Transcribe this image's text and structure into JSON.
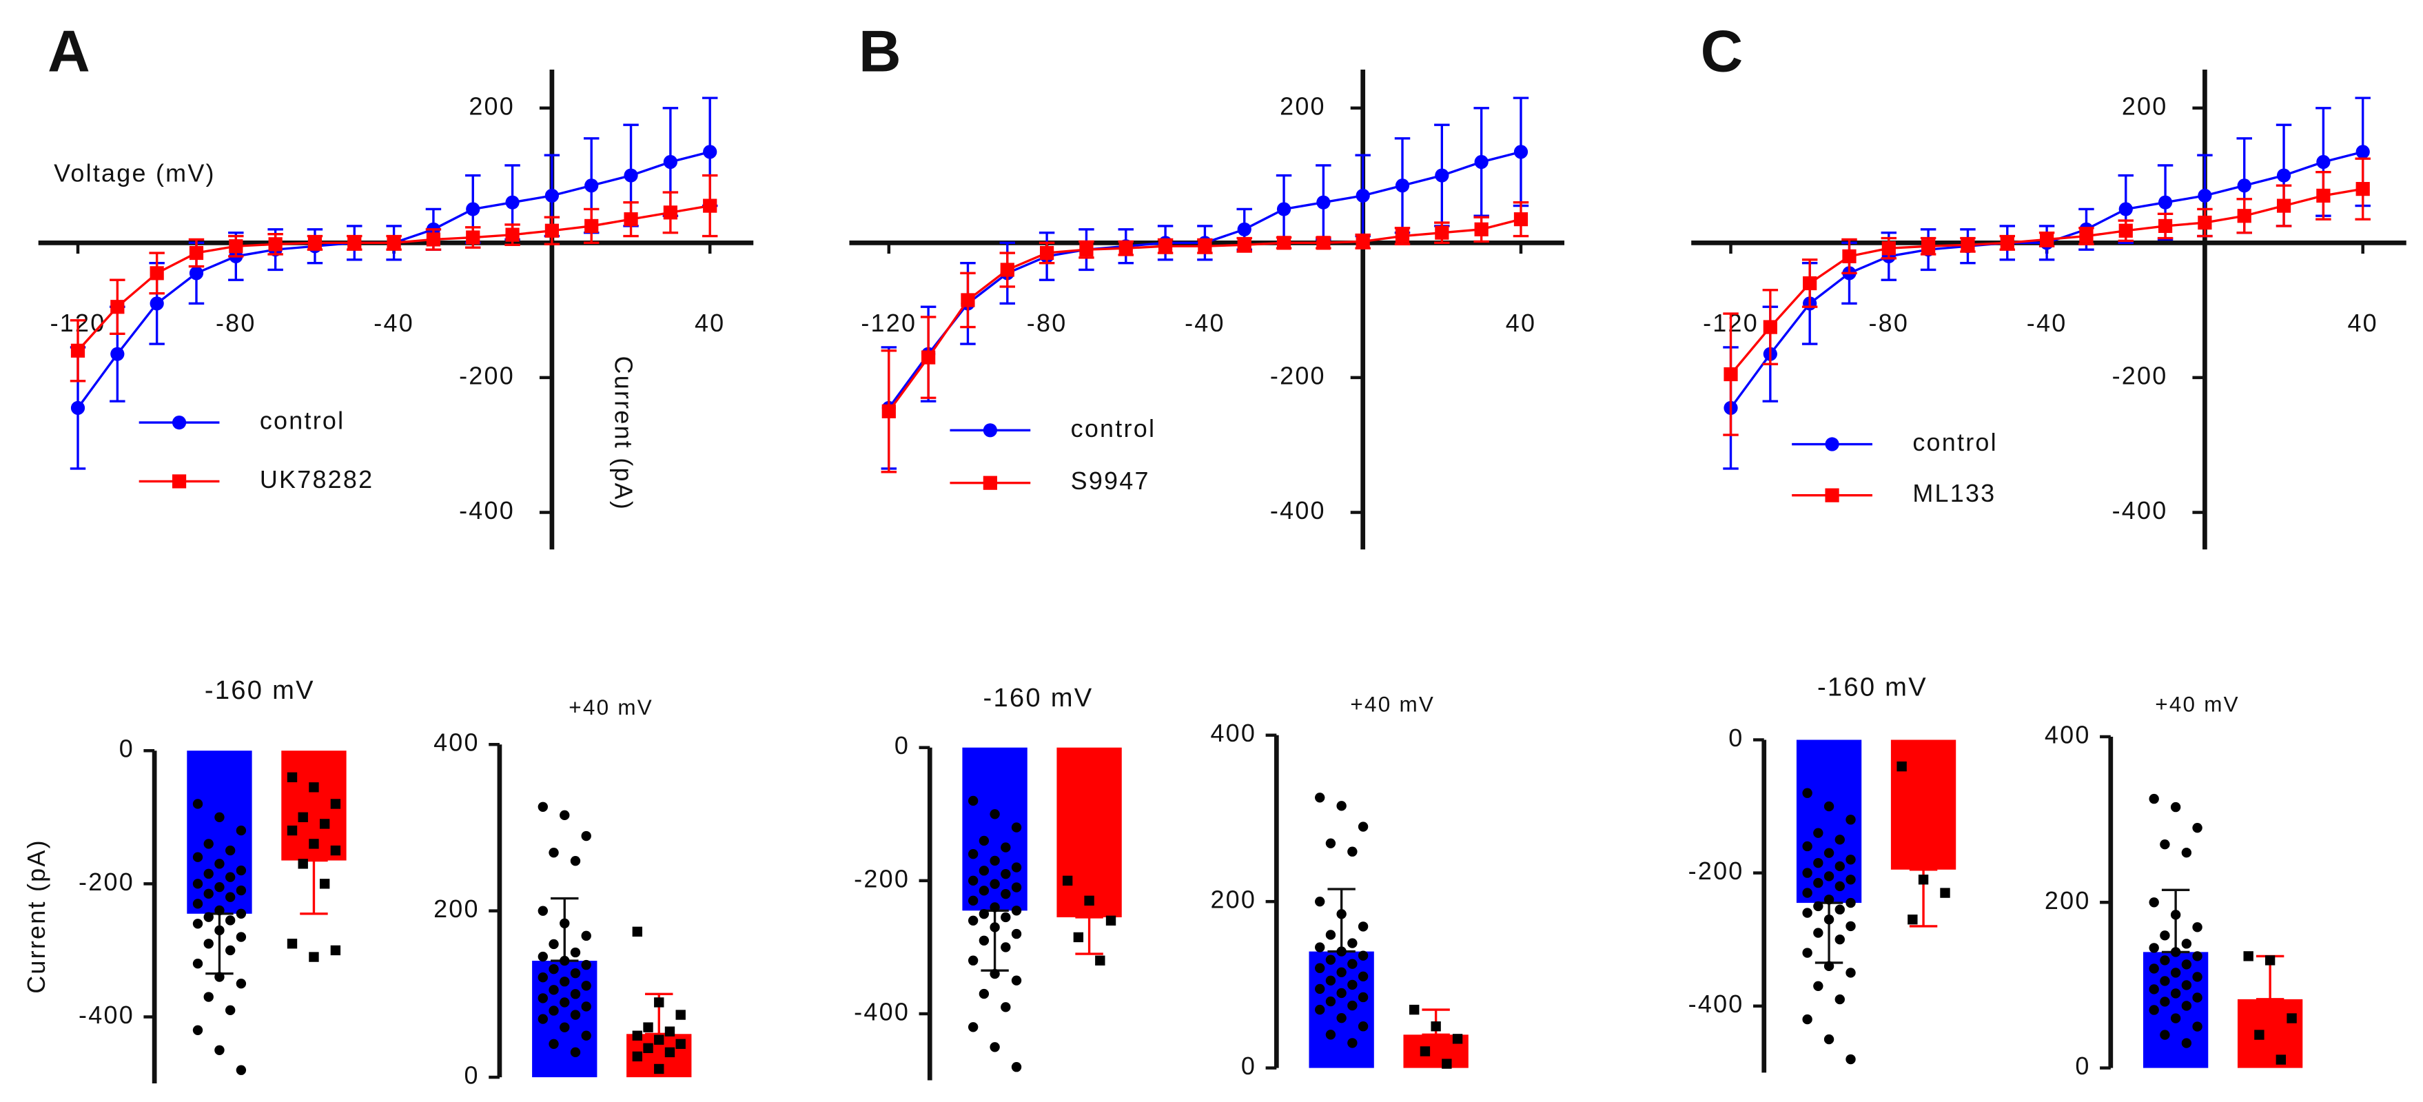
{
  "chart_data": [
    {
      "type": "line",
      "panel": "A",
      "xlabel": "Voltage (mV)",
      "ylabel": "Current (pA)",
      "x": [
        -120,
        -110,
        -100,
        -90,
        -80,
        -70,
        -60,
        -50,
        -40,
        -30,
        -20,
        -10,
        0,
        10,
        20,
        30,
        40
      ],
      "xlim": [
        -130,
        51
      ],
      "ylim": [
        -455,
        257
      ],
      "xticks": [
        -120,
        -80,
        -40,
        40
      ],
      "yticks": [
        -400,
        -200,
        200
      ],
      "series": [
        {
          "name": "control",
          "color": "#0000ff",
          "marker": "circle",
          "values": [
            -245,
            -165,
            -90,
            -45,
            -20,
            -10,
            -5,
            0,
            0,
            20,
            50,
            60,
            70,
            85,
            100,
            120,
            135
          ],
          "errors": [
            90,
            70,
            60,
            45,
            35,
            30,
            25,
            25,
            25,
            30,
            50,
            55,
            60,
            70,
            75,
            80,
            80
          ]
        },
        {
          "name": "UK78282",
          "color": "#ff0000",
          "marker": "square",
          "values": [
            -160,
            -95,
            -45,
            -15,
            -5,
            -2,
            0,
            0,
            0,
            5,
            8,
            12,
            18,
            25,
            35,
            45,
            55
          ],
          "errors": [
            45,
            40,
            30,
            20,
            15,
            15,
            10,
            10,
            10,
            15,
            15,
            15,
            20,
            25,
            25,
            30,
            45
          ]
        }
      ]
    },
    {
      "type": "line",
      "panel": "B",
      "x": [
        -120,
        -110,
        -100,
        -90,
        -80,
        -70,
        -60,
        -50,
        -40,
        -30,
        -20,
        -10,
        0,
        10,
        20,
        30,
        40
      ],
      "xlim": [
        -130,
        51
      ],
      "ylim": [
        -455,
        257
      ],
      "xticks": [
        -120,
        -80,
        -40,
        40
      ],
      "yticks": [
        -400,
        -200,
        200
      ],
      "series": [
        {
          "name": "control",
          "color": "#0000ff",
          "marker": "circle",
          "values": [
            -245,
            -165,
            -90,
            -45,
            -20,
            -10,
            -5,
            0,
            0,
            20,
            50,
            60,
            70,
            85,
            100,
            120,
            135
          ],
          "errors": [
            90,
            70,
            60,
            45,
            35,
            30,
            25,
            25,
            25,
            30,
            50,
            55,
            60,
            70,
            75,
            80,
            80
          ]
        },
        {
          "name": "S9947",
          "color": "#ff0000",
          "marker": "square",
          "values": [
            -250,
            -170,
            -85,
            -40,
            -15,
            -10,
            -8,
            -5,
            -5,
            -3,
            0,
            0,
            2,
            10,
            15,
            20,
            35
          ],
          "errors": [
            90,
            60,
            40,
            25,
            15,
            12,
            10,
            10,
            10,
            10,
            8,
            8,
            10,
            12,
            15,
            18,
            25
          ]
        }
      ]
    },
    {
      "type": "line",
      "panel": "C",
      "x": [
        -120,
        -110,
        -100,
        -90,
        -80,
        -70,
        -60,
        -50,
        -40,
        -30,
        -20,
        -10,
        0,
        10,
        20,
        30,
        40
      ],
      "xlim": [
        -130,
        51
      ],
      "ylim": [
        -455,
        257
      ],
      "xticks": [
        -120,
        -80,
        -40,
        40
      ],
      "yticks": [
        -400,
        -200,
        200
      ],
      "series": [
        {
          "name": "control",
          "color": "#0000ff",
          "marker": "circle",
          "values": [
            -245,
            -165,
            -90,
            -45,
            -20,
            -10,
            -5,
            0,
            0,
            20,
            50,
            60,
            70,
            85,
            100,
            120,
            135
          ],
          "errors": [
            90,
            70,
            60,
            45,
            35,
            30,
            25,
            25,
            25,
            30,
            50,
            55,
            60,
            70,
            75,
            80,
            80
          ]
        },
        {
          "name": "ML133",
          "color": "#ff0000",
          "marker": "square",
          "values": [
            -195,
            -125,
            -60,
            -20,
            -8,
            -5,
            -3,
            0,
            5,
            10,
            18,
            25,
            30,
            40,
            55,
            70,
            80
          ],
          "errors": [
            90,
            55,
            35,
            25,
            15,
            12,
            10,
            10,
            10,
            12,
            15,
            18,
            20,
            25,
            30,
            35,
            45
          ]
        }
      ]
    },
    {
      "type": "bar",
      "title": "-160 mV",
      "ylabel": "Current (pA)",
      "ylim": [
        -500,
        0
      ],
      "yticks": [
        -400,
        -200,
        0
      ],
      "colors": [
        "#0000ff",
        "#ff0000"
      ],
      "values": [
        -245,
        -165
      ],
      "errors": [
        90,
        80
      ],
      "points": [
        [
          -80,
          -100,
          -120,
          -140,
          -150,
          -160,
          -170,
          -180,
          -185,
          -190,
          -200,
          -205,
          -210,
          -215,
          -220,
          -230,
          -240,
          -245,
          -250,
          -255,
          -260,
          -270,
          -280,
          -290,
          -300,
          -320,
          -340,
          -350,
          -370,
          -390,
          -420,
          -450,
          -480
        ],
        [
          -40,
          -55,
          -80,
          -100,
          -110,
          -120,
          -140,
          -150,
          -170,
          -200,
          -290,
          -310,
          -300
        ]
      ]
    },
    {
      "type": "bar",
      "title": "+40 mV",
      "ylim": [
        0,
        400
      ],
      "yticks": [
        0,
        200,
        400
      ],
      "colors": [
        "#0000ff",
        "#ff0000"
      ],
      "values": [
        140,
        52
      ],
      "errors": [
        75,
        48
      ],
      "points": [
        [
          325,
          315,
          290,
          270,
          260,
          200,
          185,
          170,
          160,
          150,
          145,
          140,
          135,
          130,
          125,
          120,
          115,
          110,
          105,
          100,
          95,
          90,
          85,
          80,
          75,
          70,
          60,
          50,
          40,
          30
        ],
        [
          175,
          90,
          75,
          60,
          55,
          50,
          45,
          40,
          35,
          30,
          25,
          10
        ]
      ]
    },
    {
      "type": "bar",
      "title": "-160 mV",
      "ylim": [
        -500,
        0
      ],
      "yticks": [
        -400,
        -200,
        0
      ],
      "colors": [
        "#0000ff",
        "#ff0000"
      ],
      "values": [
        -245,
        -255
      ],
      "errors": [
        90,
        55
      ],
      "points": [
        [
          -80,
          -100,
          -120,
          -140,
          -150,
          -160,
          -170,
          -180,
          -185,
          -190,
          -200,
          -205,
          -210,
          -215,
          -220,
          -230,
          -240,
          -245,
          -250,
          -255,
          -260,
          -270,
          -280,
          -290,
          -300,
          -320,
          -340,
          -350,
          -370,
          -390,
          -420,
          -450,
          -480
        ],
        [
          -200,
          -230,
          -260,
          -285,
          -320
        ]
      ]
    },
    {
      "type": "bar",
      "title": "+40 mV",
      "ylim": [
        0,
        400
      ],
      "yticks": [
        0,
        200,
        400
      ],
      "colors": [
        "#0000ff",
        "#ff0000"
      ],
      "values": [
        140,
        40
      ],
      "errors": [
        75,
        30
      ],
      "points": [
        [
          325,
          315,
          290,
          270,
          260,
          200,
          185,
          170,
          160,
          150,
          145,
          140,
          135,
          130,
          125,
          120,
          115,
          110,
          105,
          100,
          95,
          90,
          85,
          80,
          75,
          70,
          60,
          50,
          40,
          30
        ],
        [
          70,
          50,
          35,
          20,
          5
        ]
      ]
    },
    {
      "type": "bar",
      "title": "-160 mV",
      "ylim": [
        -500,
        0
      ],
      "yticks": [
        -400,
        -200,
        0
      ],
      "colors": [
        "#0000ff",
        "#ff0000"
      ],
      "values": [
        -245,
        -195
      ],
      "errors": [
        90,
        85
      ],
      "points": [
        [
          -80,
          -100,
          -120,
          -140,
          -150,
          -160,
          -170,
          -180,
          -185,
          -190,
          -200,
          -205,
          -210,
          -215,
          -220,
          -230,
          -240,
          -245,
          -250,
          -255,
          -260,
          -270,
          -280,
          -290,
          -300,
          -320,
          -340,
          -350,
          -370,
          -390,
          -420,
          -450,
          -480
        ],
        [
          -40,
          -210,
          -230,
          -270
        ]
      ]
    },
    {
      "type": "bar",
      "title": "+40 mV",
      "ylim": [
        0,
        400
      ],
      "yticks": [
        0,
        200,
        400
      ],
      "colors": [
        "#0000ff",
        "#ff0000"
      ],
      "values": [
        140,
        83
      ],
      "errors": [
        75,
        52
      ],
      "points": [
        [
          325,
          315,
          290,
          270,
          260,
          200,
          185,
          170,
          160,
          150,
          145,
          140,
          135,
          130,
          125,
          120,
          115,
          110,
          105,
          100,
          95,
          90,
          85,
          80,
          75,
          70,
          60,
          50,
          40,
          30
        ],
        [
          135,
          130,
          60,
          40,
          10
        ]
      ]
    }
  ]
}
